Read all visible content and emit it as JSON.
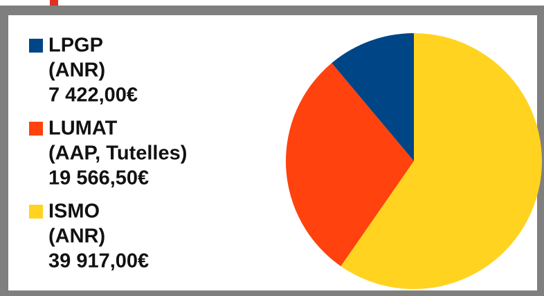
{
  "chart_data": {
    "type": "pie",
    "categories": [
      "LPGP",
      "LUMAT",
      "ISMO"
    ],
    "sublabels": [
      "(ANR)",
      "(AAP, Tutelles)",
      "(ANR)"
    ],
    "values": [
      7422,
      19566.5,
      39917
    ],
    "value_labels": [
      "7 422,00€",
      "19 566,50€",
      "39 917,00€"
    ],
    "colors": [
      "#004586",
      "#ff420e",
      "#ffd320"
    ],
    "legend": "left"
  }
}
